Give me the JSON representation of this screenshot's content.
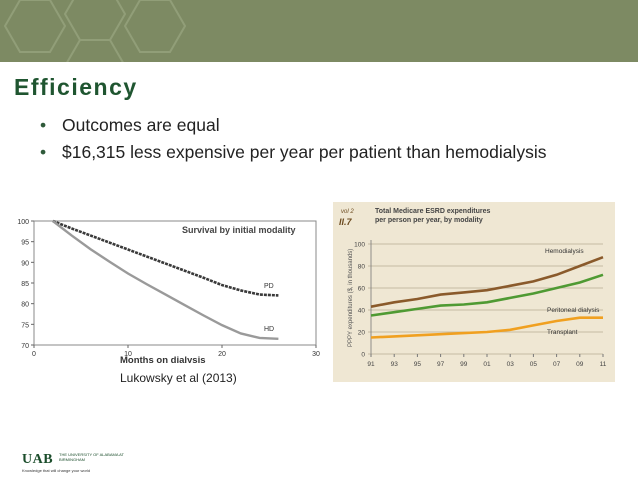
{
  "slide": {
    "title": "Efficiency",
    "bullets": [
      "Outcomes are equal",
      "$16,315 less expensive per year per patient than hemodialysis"
    ],
    "citation": "Lukowsky et al (2013)"
  },
  "footer": {
    "logo": "UAB",
    "university": "THE UNIVERSITY OF ALABAMA AT BIRMINGHAM",
    "tagline": "Knowledge that will change your world"
  },
  "colors": {
    "header_band": "#7d8a63",
    "title": "#1f5530",
    "hemodialysis": "#8a5a2b",
    "peritoneal": "#4f9a33",
    "transplant": "#f0a020",
    "chart_panel": "#efe7d3"
  },
  "chart_data": [
    {
      "type": "line",
      "title": "Survival by initial modality",
      "xlabel": "Months on dialysis",
      "ylabel": "",
      "xlim": [
        0,
        30
      ],
      "ylim": [
        70,
        100
      ],
      "x_ticks": [
        "0",
        "10",
        "20",
        "30"
      ],
      "y_ticks": [
        "100",
        "95",
        "90",
        "85",
        "80",
        "75",
        "70"
      ],
      "series": [
        {
          "name": "PD",
          "x": [
            2,
            4,
            6,
            8,
            10,
            12,
            14,
            16,
            18,
            20,
            22,
            24,
            26
          ],
          "values": [
            100,
            98.2,
            96.5,
            94.8,
            93.1,
            91.4,
            89.7,
            88,
            86.3,
            84.5,
            83.2,
            82.2,
            82
          ]
        },
        {
          "name": "HD",
          "x": [
            2,
            4,
            6,
            8,
            10,
            12,
            14,
            16,
            18,
            20,
            22,
            24,
            26
          ],
          "values": [
            100,
            96.5,
            93.2,
            90.2,
            87.3,
            84.7,
            82.2,
            79.7,
            77.2,
            74.8,
            72.8,
            71.7,
            71.5
          ]
        }
      ]
    },
    {
      "type": "line",
      "panel_label": "vol 2 II.7",
      "title": "Total Medicare ESRD expenditures per person per year, by modality",
      "xlabel": "",
      "ylabel": "PPPY expenditures ($, in thousands)",
      "ylim": [
        0,
        100
      ],
      "categories": [
        "91",
        "93",
        "95",
        "97",
        "99",
        "01",
        "03",
        "05",
        "07",
        "09",
        "11"
      ],
      "y_ticks": [
        "100",
        "80",
        "60",
        "40",
        "20",
        "0"
      ],
      "series": [
        {
          "name": "Hemodialysis",
          "values": [
            43,
            47,
            50,
            54,
            56,
            58,
            62,
            66,
            72,
            80,
            88
          ]
        },
        {
          "name": "Peritoneal dialysis",
          "values": [
            35,
            38,
            41,
            44,
            45,
            47,
            51,
            55,
            60,
            65,
            72
          ]
        },
        {
          "name": "Transplant",
          "values": [
            15,
            16,
            17,
            18,
            19,
            20,
            22,
            26,
            30,
            33,
            33
          ]
        }
      ]
    }
  ]
}
